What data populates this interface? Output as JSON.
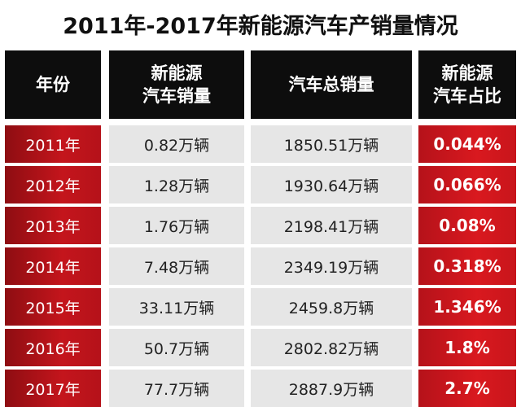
{
  "title": "2011年-2017年新能源汽车产销量情况",
  "headers": [
    "年份",
    "新能源\n汽车销量",
    "汽车总销量",
    "新能源\n汽车占比"
  ],
  "rows": [
    {
      "year": "2011年",
      "nev_sales": "0.82万辆",
      "total_sales": "1850.51万辆",
      "share": "0.044%"
    },
    {
      "year": "2012年",
      "nev_sales": "1.28万辆",
      "total_sales": "1930.64万辆",
      "share": "0.066%"
    },
    {
      "year": "2013年",
      "nev_sales": "1.76万辆",
      "total_sales": "2198.41万辆",
      "share": "0.08%"
    },
    {
      "year": "2014年",
      "nev_sales": "7.48万辆",
      "total_sales": "2349.19万辆",
      "share": "0.318%"
    },
    {
      "year": "2015年",
      "nev_sales": "33.11万辆",
      "total_sales": "2459.8万辆",
      "share": "1.346%"
    },
    {
      "year": "2016年",
      "nev_sales": "50.7万辆",
      "total_sales": "2802.82万辆",
      "share": "1.8%"
    },
    {
      "year": "2017年",
      "nev_sales": "77.7万辆",
      "total_sales": "2887.9万辆",
      "share": "2.7%"
    }
  ],
  "colors": {
    "header_bg": "#0d0d0d",
    "year_red": "#c4151c",
    "share_red": "#d9191f",
    "value_gray": "#e6e6e6"
  }
}
